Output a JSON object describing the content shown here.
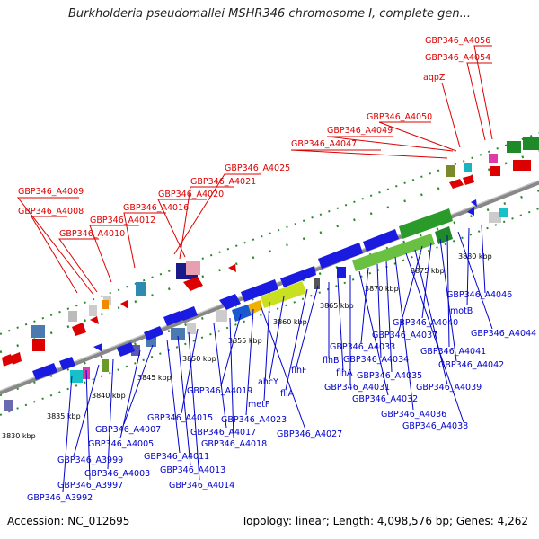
{
  "title": "Burkholderia pseudomallei MSHR346 chromosome I, complete gen...",
  "accession": "Accession: NC_012695",
  "topology": "Topology: linear; Length: 4,098,576 bp; Genes: 4,262",
  "colors": {
    "top_labels": "#dd0000",
    "bottom_labels": "#0000cc",
    "backbone": "#888888",
    "ticks": "#2a8a2a"
  },
  "kbp_labels": [
    "3830 kbp",
    "3835 kbp",
    "3840 kbp",
    "3845 kbp",
    "3850 kbp",
    "3855 kbp",
    "3860 kbp",
    "3865 kbp",
    "3870 kbp",
    "3875 kbp",
    "3880 kbp"
  ],
  "top_genes": [
    "GBP346_A4056",
    "GBP346_A4054",
    "aqpZ",
    "GBP346_A4050",
    "GBP346_A4049",
    "GBP346_A4047",
    "GBP346_A4025",
    "GBP346_A4021",
    "GBP346_A4020",
    "GBP346_A4016",
    "GBP346_A4012",
    "GBP346_A4010",
    "GBP346_A4009",
    "GBP346_A4008"
  ],
  "bottom_genes": [
    "GBP346_A4046",
    "motB",
    "GBP346_A4044",
    "GBP346_A4041",
    "GBP346_A4042",
    "GBP346_A4040",
    "GBP346_A4037",
    "GBP346_A4039",
    "GBP346_A4038",
    "GBP346_A4036",
    "GBP346_A4035",
    "GBP346_A4034",
    "GBP346_A4033",
    "GBP346_A4032",
    "GBP346_A4031",
    "flhA",
    "flhB",
    "flhF",
    "fliA",
    "ahcY",
    "metF",
    "GBP346_A4027",
    "GBP346_A4023",
    "GBP346_A4019",
    "GBP346_A4018",
    "GBP346_A4017",
    "GBP346_A4015",
    "GBP346_A4014",
    "GBP346_A4013",
    "GBP346_A4011",
    "GBP346_A4007",
    "GBP346_A4005",
    "GBP346_A4003",
    "GBP346_A3999",
    "GBP346_A3997",
    "GBP346_A3992"
  ]
}
